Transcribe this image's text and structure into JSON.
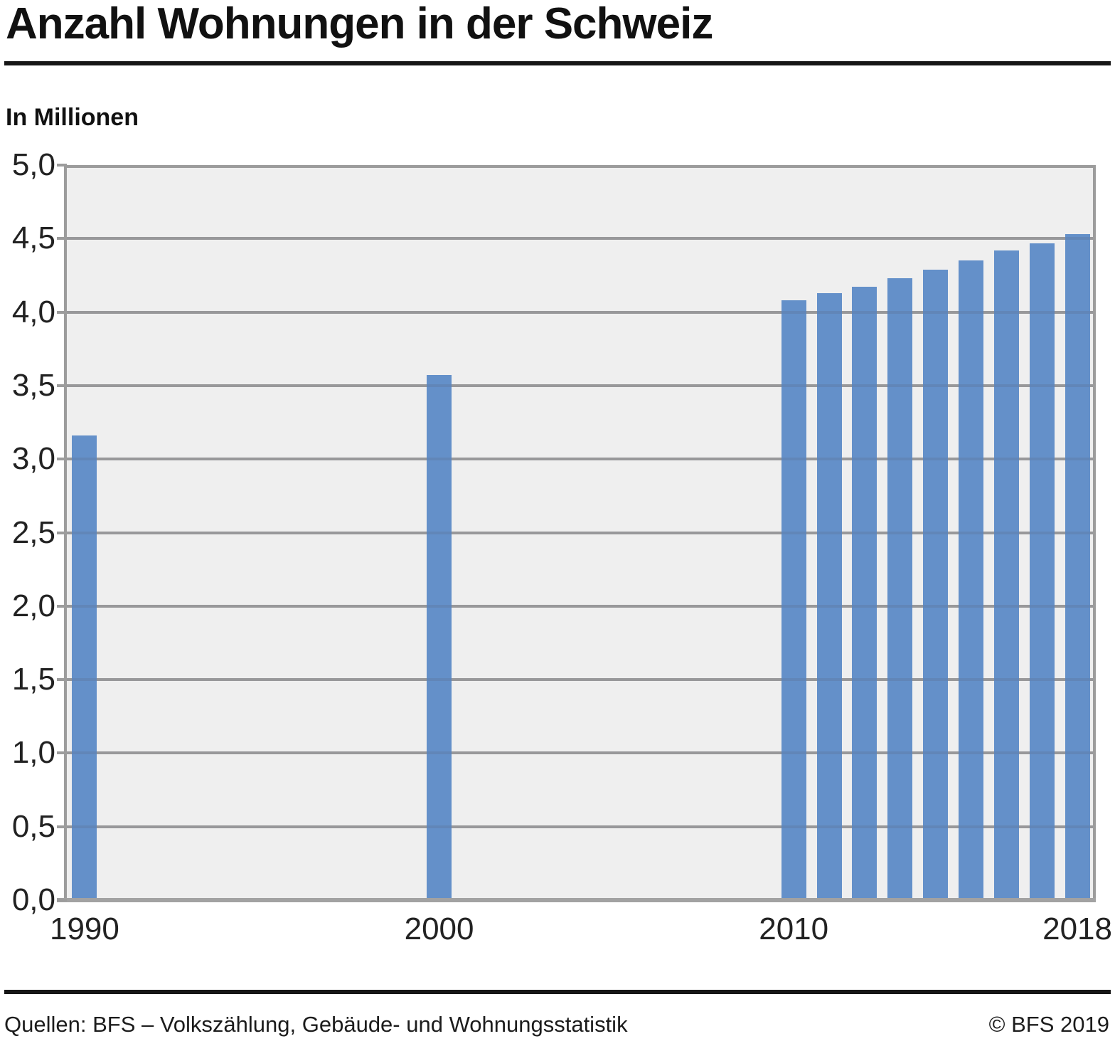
{
  "header": {
    "title": "Anzahl Wohnungen in der Schweiz",
    "unit_label": "In Millionen"
  },
  "footer": {
    "source": "Quellen: BFS – Volkszählung, Gebäude- und Wohnungsstatistik",
    "copyright": "© BFS 2019"
  },
  "colors": {
    "bar": "#6490c9",
    "plot_background": "#efefef",
    "gridline": "#a5a5a5",
    "axis": "#9c9c9c",
    "rule": "#161616"
  },
  "chart_data": {
    "type": "bar",
    "title": "Anzahl Wohnungen in der Schweiz",
    "ylabel": "In Millionen",
    "xlabel": "",
    "ylim": [
      0,
      5
    ],
    "ytick_step": 0.5,
    "ytick_values": [
      0,
      0.5,
      1,
      1.5,
      2,
      2.5,
      3,
      3.5,
      4,
      4.5,
      5
    ],
    "ytick_labels": [
      "0,0",
      "0,5",
      "1,0",
      "1,5",
      "2,0",
      "2,5",
      "3,0",
      "3,5",
      "4,0",
      "4,5",
      "5,0"
    ],
    "x_axis_years": [
      1990,
      2018
    ],
    "xtick_labels": [
      "1990",
      "2000",
      "2010",
      "2018"
    ],
    "xtick_years": [
      1990,
      2000,
      2010,
      2018
    ],
    "grid": true,
    "legend_position": "none",
    "series": [
      {
        "name": "Wohnungen",
        "points": [
          {
            "year": 1990,
            "value": 3.16
          },
          {
            "year": 2000,
            "value": 3.57
          },
          {
            "year": 2010,
            "value": 4.08
          },
          {
            "year": 2011,
            "value": 4.13
          },
          {
            "year": 2012,
            "value": 4.17
          },
          {
            "year": 2013,
            "value": 4.23
          },
          {
            "year": 2014,
            "value": 4.29
          },
          {
            "year": 2015,
            "value": 4.35
          },
          {
            "year": 2016,
            "value": 4.42
          },
          {
            "year": 2017,
            "value": 4.47
          },
          {
            "year": 2018,
            "value": 4.53
          }
        ]
      }
    ]
  }
}
